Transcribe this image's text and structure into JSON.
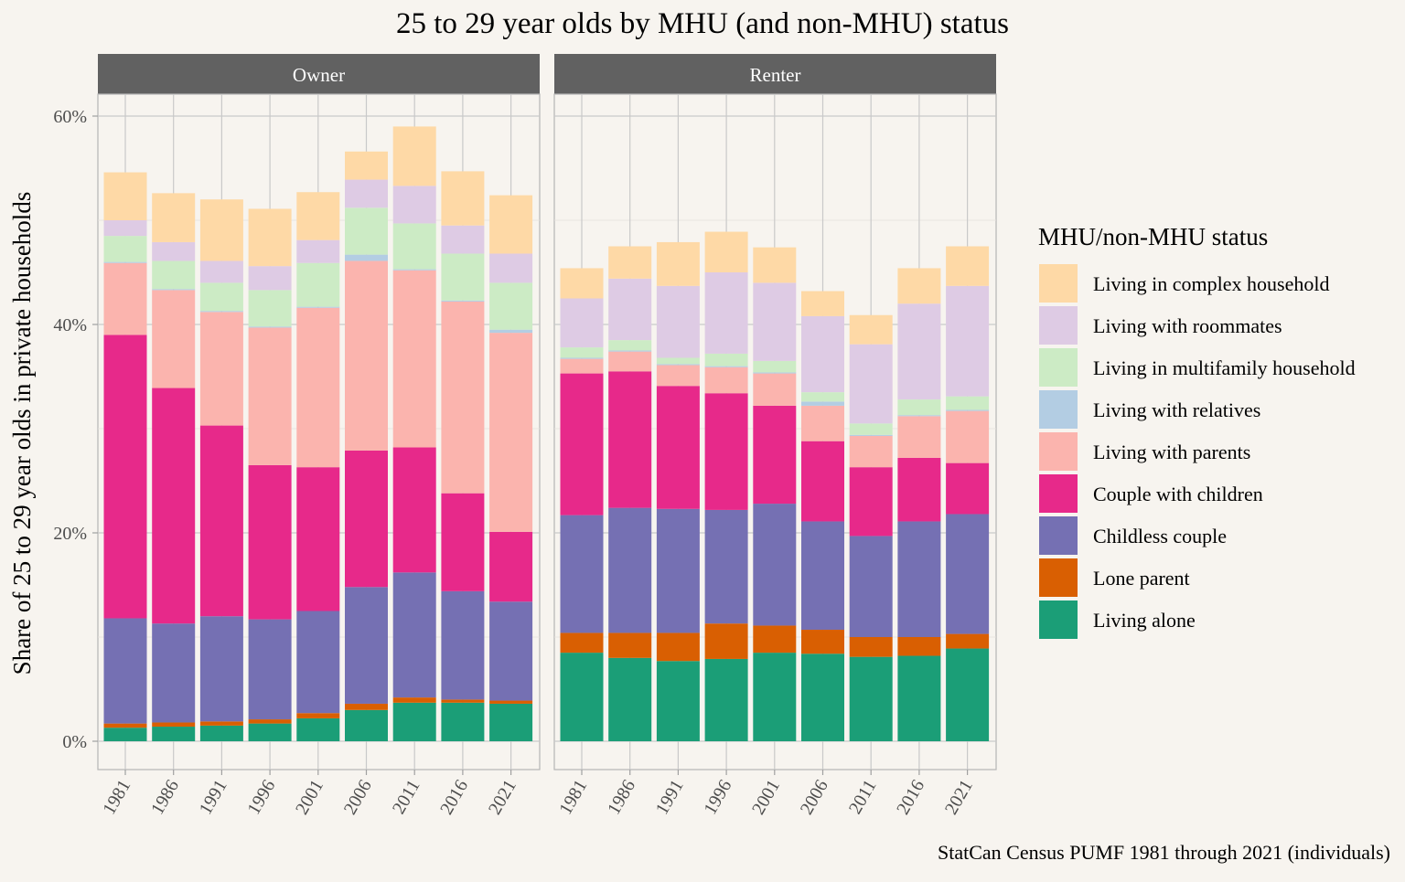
{
  "chart_data": {
    "type": "bar",
    "stacked": true,
    "title": "25 to 29 year olds by MHU (and non-MHU) status",
    "ylabel": "Share of 25 to 29 year olds in private households",
    "xlabel": "",
    "caption": "StatCan Census PUMF 1981 through 2021 (individuals)",
    "ylim": [
      0,
      0.6
    ],
    "yticks": [
      0,
      0.2,
      0.4,
      0.6
    ],
    "ytick_labels": [
      "0%",
      "20%",
      "40%",
      "60%"
    ],
    "grid": true,
    "legend": {
      "title": "MHU/non-MHU status",
      "position": "right",
      "order_top_to_bottom": [
        "Living in complex household",
        "Living with roommates",
        "Living in multifamily household",
        "Living with relatives",
        "Living with parents",
        "Couple with children",
        "Childless couple",
        "Lone parent",
        "Living alone"
      ]
    },
    "categories": [
      "1981",
      "1986",
      "1991",
      "1996",
      "2001",
      "2006",
      "2011",
      "2016",
      "2021"
    ],
    "series_stack_order_bottom_to_top": [
      "Living alone",
      "Lone parent",
      "Childless couple",
      "Couple with children",
      "Living with parents",
      "Living with relatives",
      "Living in multifamily household",
      "Living with roommates",
      "Living in complex household"
    ],
    "colors": {
      "Living alone": "#1b9e77",
      "Lone parent": "#d95f02",
      "Childless couple": "#7570b3",
      "Couple with children": "#e7298a",
      "Living with parents": "#fbb4ae",
      "Living with relatives": "#b3cde3",
      "Living in multifamily household": "#ccebc5",
      "Living with roommates": "#decbe4",
      "Living in complex household": "#fed9a6"
    },
    "panels": [
      {
        "name": "Owner",
        "series": [
          {
            "name": "Living alone",
            "values": [
              0.013,
              0.014,
              0.015,
              0.017,
              0.022,
              0.03,
              0.037,
              0.037,
              0.036
            ]
          },
          {
            "name": "Lone parent",
            "values": [
              0.004,
              0.004,
              0.004,
              0.004,
              0.005,
              0.006,
              0.005,
              0.003,
              0.003
            ]
          },
          {
            "name": "Childless couple",
            "values": [
              0.101,
              0.095,
              0.101,
              0.096,
              0.098,
              0.112,
              0.12,
              0.104,
              0.095
            ]
          },
          {
            "name": "Couple with children",
            "values": [
              0.272,
              0.226,
              0.183,
              0.148,
              0.138,
              0.131,
              0.12,
              0.094,
              0.067
            ]
          },
          {
            "name": "Living with parents",
            "values": [
              0.069,
              0.094,
              0.109,
              0.132,
              0.153,
              0.182,
              0.17,
              0.184,
              0.191
            ]
          },
          {
            "name": "Living with relatives",
            "values": [
              0.001,
              0.001,
              0.001,
              0.001,
              0.001,
              0.006,
              0.001,
              0.001,
              0.003
            ]
          },
          {
            "name": "Living in multifamily household",
            "values": [
              0.025,
              0.027,
              0.027,
              0.035,
              0.042,
              0.045,
              0.044,
              0.045,
              0.045
            ]
          },
          {
            "name": "Living with roommates",
            "values": [
              0.015,
              0.018,
              0.021,
              0.023,
              0.022,
              0.027,
              0.036,
              0.027,
              0.028
            ]
          },
          {
            "name": "Living in complex household",
            "values": [
              0.046,
              0.047,
              0.059,
              0.055,
              0.046,
              0.027,
              0.057,
              0.052,
              0.056
            ]
          }
        ]
      },
      {
        "name": "Renter",
        "series": [
          {
            "name": "Living alone",
            "values": [
              0.085,
              0.08,
              0.077,
              0.079,
              0.085,
              0.084,
              0.081,
              0.082,
              0.089
            ]
          },
          {
            "name": "Lone parent",
            "values": [
              0.019,
              0.024,
              0.027,
              0.034,
              0.026,
              0.023,
              0.019,
              0.018,
              0.014
            ]
          },
          {
            "name": "Childless couple",
            "values": [
              0.113,
              0.12,
              0.119,
              0.109,
              0.117,
              0.104,
              0.097,
              0.111,
              0.115
            ]
          },
          {
            "name": "Couple with children",
            "values": [
              0.136,
              0.131,
              0.118,
              0.112,
              0.094,
              0.077,
              0.066,
              0.061,
              0.049
            ]
          },
          {
            "name": "Living with parents",
            "values": [
              0.014,
              0.019,
              0.02,
              0.025,
              0.031,
              0.034,
              0.03,
              0.04,
              0.05
            ]
          },
          {
            "name": "Living with relatives",
            "values": [
              0.001,
              0.001,
              0.001,
              0.001,
              0.001,
              0.004,
              0.001,
              0.001,
              0.001
            ]
          },
          {
            "name": "Living in multifamily household",
            "values": [
              0.01,
              0.01,
              0.006,
              0.012,
              0.011,
              0.009,
              0.011,
              0.015,
              0.013
            ]
          },
          {
            "name": "Living with roommates",
            "values": [
              0.047,
              0.059,
              0.069,
              0.078,
              0.075,
              0.073,
              0.076,
              0.092,
              0.106
            ]
          },
          {
            "name": "Living in complex household",
            "values": [
              0.029,
              0.031,
              0.042,
              0.039,
              0.034,
              0.024,
              0.028,
              0.034,
              0.038
            ]
          }
        ]
      }
    ]
  }
}
